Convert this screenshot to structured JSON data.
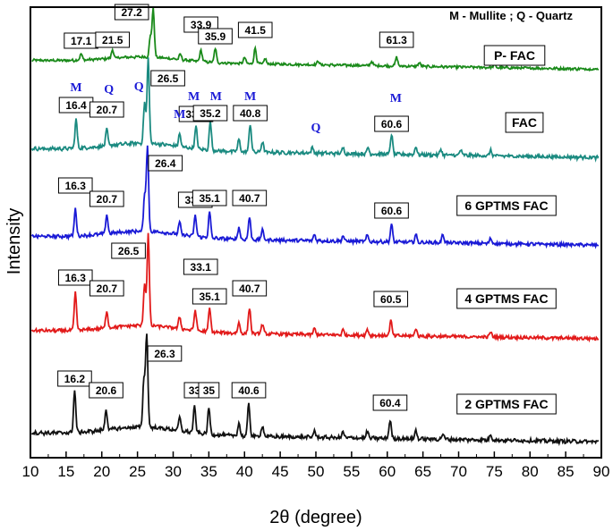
{
  "chart_data": {
    "type": "line",
    "xlabel": "2θ (degree)",
    "ylabel": "Intensity",
    "xlim": [
      10,
      90
    ],
    "xticks": [
      10,
      15,
      20,
      25,
      30,
      35,
      40,
      45,
      50,
      55,
      60,
      65,
      70,
      75,
      80,
      85,
      90
    ],
    "yticks_shown": false,
    "grid": false,
    "legend_text": "M - Mullite ; Q - Quartz",
    "legend_position": "top-right",
    "series": [
      {
        "name": "P- FAC",
        "color": "#1a8a1a",
        "peaks": [
          {
            "x": 17.1,
            "h": 0.1,
            "label": "17.1"
          },
          {
            "x": 21.5,
            "h": 0.13,
            "label": "21.5"
          },
          {
            "x": 26.8,
            "h": 0.3
          },
          {
            "x": 27.2,
            "h": 0.75,
            "label": "27.2"
          },
          {
            "x": 31.0,
            "h": 0.08
          },
          {
            "x": 33.9,
            "h": 0.18,
            "label": "33.9"
          },
          {
            "x": 35.9,
            "h": 0.22,
            "label": "35.9"
          },
          {
            "x": 40.0,
            "h": 0.1
          },
          {
            "x": 41.5,
            "h": 0.25,
            "label": "41.5"
          },
          {
            "x": 42.9,
            "h": 0.08
          },
          {
            "x": 50.3,
            "h": 0.06
          },
          {
            "x": 57.8,
            "h": 0.07
          },
          {
            "x": 61.3,
            "h": 0.14,
            "label": "61.3"
          },
          {
            "x": 64.5,
            "h": 0.06
          },
          {
            "x": 75.0,
            "h": 0.05
          }
        ]
      },
      {
        "name": "FAC",
        "color": "#1a8a80",
        "peaks": [
          {
            "x": 16.4,
            "h": 0.32,
            "label": "16.4"
          },
          {
            "x": 20.7,
            "h": 0.18,
            "label": "20.7"
          },
          {
            "x": 26.0,
            "h": 0.45
          },
          {
            "x": 26.5,
            "h": 0.95,
            "label": "26.5"
          },
          {
            "x": 30.9,
            "h": 0.14
          },
          {
            "x": 33.2,
            "h": 0.25,
            "label": "33.2"
          },
          {
            "x": 35.2,
            "h": 0.32,
            "label": "35.2"
          },
          {
            "x": 39.2,
            "h": 0.14
          },
          {
            "x": 40.8,
            "h": 0.32,
            "label": "40.8"
          },
          {
            "x": 42.5,
            "h": 0.12
          },
          {
            "x": 49.5,
            "h": 0.06
          },
          {
            "x": 53.8,
            "h": 0.06
          },
          {
            "x": 57.3,
            "h": 0.07
          },
          {
            "x": 60.6,
            "h": 0.22,
            "label": "60.6"
          },
          {
            "x": 64.0,
            "h": 0.09
          },
          {
            "x": 67.5,
            "h": 0.06
          },
          {
            "x": 70.3,
            "h": 0.06
          },
          {
            "x": 74.5,
            "h": 0.06
          }
        ],
        "markers": [
          {
            "x": 16.4,
            "text": "M"
          },
          {
            "x": 21.0,
            "text": "Q"
          },
          {
            "x": 25.2,
            "text": "Q"
          },
          {
            "x": 30.9,
            "text": "M"
          },
          {
            "x": 32.9,
            "text": "M"
          },
          {
            "x": 36.0,
            "text": "M"
          },
          {
            "x": 40.8,
            "text": "M"
          },
          {
            "x": 50.0,
            "text": "Q"
          },
          {
            "x": 61.2,
            "text": "M"
          }
        ]
      },
      {
        "name": "6 GPTMS FAC",
        "color": "#1a1ad6",
        "peaks": [
          {
            "x": 16.3,
            "h": 0.32,
            "label": "16.3"
          },
          {
            "x": 20.7,
            "h": 0.22,
            "label": "20.7"
          },
          {
            "x": 26.0,
            "h": 0.4
          },
          {
            "x": 26.4,
            "h": 1.0,
            "label": "26.4"
          },
          {
            "x": 30.9,
            "h": 0.14
          },
          {
            "x": 33.1,
            "h": 0.25,
            "label": "33.1"
          },
          {
            "x": 35.1,
            "h": 0.3,
            "label": "35.1"
          },
          {
            "x": 39.2,
            "h": 0.14
          },
          {
            "x": 40.7,
            "h": 0.27,
            "label": "40.7"
          },
          {
            "x": 42.5,
            "h": 0.12
          },
          {
            "x": 49.8,
            "h": 0.07
          },
          {
            "x": 53.8,
            "h": 0.06
          },
          {
            "x": 57.2,
            "h": 0.07
          },
          {
            "x": 60.6,
            "h": 0.2,
            "label": "60.6"
          },
          {
            "x": 64.0,
            "h": 0.09
          },
          {
            "x": 67.8,
            "h": 0.1
          },
          {
            "x": 74.5,
            "h": 0.06
          }
        ]
      },
      {
        "name": "4 GPTMS FAC",
        "color": "#e21a1a",
        "peaks": [
          {
            "x": 16.3,
            "h": 0.45,
            "label": "16.3"
          },
          {
            "x": 20.7,
            "h": 0.2,
            "label": "20.7"
          },
          {
            "x": 26.0,
            "h": 0.5
          },
          {
            "x": 26.5,
            "h": 1.1,
            "label": "26.5"
          },
          {
            "x": 30.9,
            "h": 0.14
          },
          {
            "x": 33.1,
            "h": 0.25,
            "label": "33.1"
          },
          {
            "x": 35.1,
            "h": 0.28,
            "label": "35.1"
          },
          {
            "x": 39.2,
            "h": 0.13
          },
          {
            "x": 40.7,
            "h": 0.32,
            "label": "40.7"
          },
          {
            "x": 42.5,
            "h": 0.12
          },
          {
            "x": 49.8,
            "h": 0.07
          },
          {
            "x": 53.8,
            "h": 0.06
          },
          {
            "x": 57.2,
            "h": 0.07
          },
          {
            "x": 60.5,
            "h": 0.18,
            "label": "60.5"
          },
          {
            "x": 64.0,
            "h": 0.09
          },
          {
            "x": 74.5,
            "h": 0.06
          }
        ]
      },
      {
        "name": "2 GPTMS FAC",
        "color": "#111111",
        "peaks": [
          {
            "x": 16.2,
            "h": 0.45,
            "label": "16.2"
          },
          {
            "x": 20.6,
            "h": 0.22,
            "label": "20.6"
          },
          {
            "x": 25.9,
            "h": 0.5
          },
          {
            "x": 26.3,
            "h": 1.0,
            "label": "26.3"
          },
          {
            "x": 30.9,
            "h": 0.14
          },
          {
            "x": 33.0,
            "h": 0.28,
            "label": "33"
          },
          {
            "x": 35.0,
            "h": 0.28,
            "label": "35"
          },
          {
            "x": 39.2,
            "h": 0.14
          },
          {
            "x": 40.6,
            "h": 0.35,
            "label": "40.6"
          },
          {
            "x": 42.5,
            "h": 0.12
          },
          {
            "x": 49.8,
            "h": 0.07
          },
          {
            "x": 53.8,
            "h": 0.06
          },
          {
            "x": 57.2,
            "h": 0.07
          },
          {
            "x": 60.4,
            "h": 0.2,
            "label": "60.4"
          },
          {
            "x": 64.0,
            "h": 0.09
          },
          {
            "x": 67.8,
            "h": 0.06
          },
          {
            "x": 74.5,
            "h": 0.06
          }
        ]
      }
    ]
  }
}
